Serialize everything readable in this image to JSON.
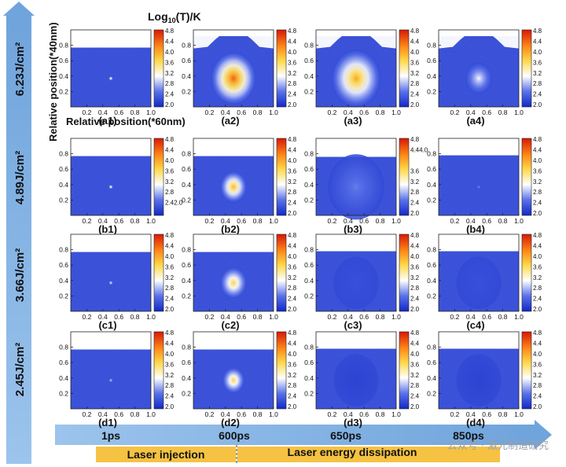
{
  "chart_data": {
    "type": "heatmap",
    "title": "Log10(T)/K",
    "title_parts": {
      "pre": "Log",
      "sub": "10",
      "post": "(T)/K"
    },
    "ylabel": "Relative position(*40nm)",
    "xlabel": "Relative position(*60nm)",
    "x_ticks": [
      "0.2",
      "0.4",
      "0.6",
      "0.8",
      "1.0"
    ],
    "y_ticks": [
      "0.8",
      "0.6",
      "0.4",
      "0.2"
    ],
    "colorbar_ticks": [
      "4.8",
      "4.4",
      "4.0",
      "3.6",
      "3.2",
      "2.8",
      "2.4",
      "2.0"
    ],
    "colorbar_ticks_b1": [
      "4.8",
      "4.4",
      "4.0",
      "3.6",
      "3.2",
      "2.8",
      "2.42.0"
    ],
    "colorbar_ticks_a3": [
      "4.8",
      "4.4",
      "4.0",
      "3.6",
      "3.2",
      "2.8",
      "2.4",
      "2.0"
    ],
    "colorbar_ticks_b3": [
      "4.8",
      "4.44.0",
      "3.6",
      "3.2",
      "2.8",
      "2.4",
      "2.0"
    ],
    "colorbar_ticks_b2": [
      "4.8",
      "4.4",
      "4.0",
      "3.6",
      "3.2",
      "2.8",
      "2.4",
      "2.0"
    ],
    "colorbar_range": [
      2.0,
      4.8
    ],
    "fluences": [
      "6.23J/cm²",
      "4.89J/cm²",
      "3.66J/cm²",
      "2.45J/cm²"
    ],
    "times": [
      "1ps",
      "600ps",
      "650ps",
      "850ps"
    ],
    "phases": [
      "Laser injection",
      "Laser energy dissipation"
    ],
    "panels": [
      {
        "label": "(a1)",
        "row": 0,
        "col": 0,
        "peak_log10T": 3.4,
        "hotspot_spread": 0.012,
        "surface_y": 0.77
      },
      {
        "label": "(a2)",
        "row": 0,
        "col": 1,
        "peak_log10T": 4.4,
        "hotspot_spread": 0.2,
        "surface_y": 0.8
      },
      {
        "label": "(a3)",
        "row": 0,
        "col": 2,
        "peak_log10T": 4.0,
        "hotspot_spread": 0.22,
        "surface_y": 0.8
      },
      {
        "label": "(a4)",
        "row": 0,
        "col": 3,
        "peak_log10T": 3.1,
        "hotspot_spread": 0.12,
        "surface_y": 0.8
      },
      {
        "label": "(b1)",
        "row": 1,
        "col": 0,
        "peak_log10T": 3.4,
        "hotspot_spread": 0.012,
        "surface_y": 0.77
      },
      {
        "label": "(b2)",
        "row": 1,
        "col": 1,
        "peak_log10T": 3.9,
        "hotspot_spread": 0.12,
        "surface_y": 0.77
      },
      {
        "label": "(b3)",
        "row": 1,
        "col": 2,
        "peak_log10T": 2.6,
        "hotspot_spread": 0.25,
        "surface_y": 0.76
      },
      {
        "label": "(b4)",
        "row": 1,
        "col": 3,
        "peak_log10T": 2.7,
        "hotspot_spread": 0.012,
        "surface_y": 0.78
      },
      {
        "label": "(c1)",
        "row": 2,
        "col": 0,
        "peak_log10T": 3.2,
        "hotspot_spread": 0.012,
        "surface_y": 0.77
      },
      {
        "label": "(c2)",
        "row": 2,
        "col": 1,
        "peak_log10T": 3.7,
        "hotspot_spread": 0.12,
        "surface_y": 0.77
      },
      {
        "label": "(c3)",
        "row": 2,
        "col": 2,
        "peak_log10T": 2.3,
        "hotspot_spread": 0.2,
        "surface_y": 0.78
      },
      {
        "label": "(c4)",
        "row": 2,
        "col": 3,
        "peak_log10T": 2.3,
        "hotspot_spread": 0.2,
        "surface_y": 0.78
      },
      {
        "label": "(d1)",
        "row": 3,
        "col": 0,
        "peak_log10T": 3.0,
        "hotspot_spread": 0.012,
        "surface_y": 0.77
      },
      {
        "label": "(d2)",
        "row": 3,
        "col": 1,
        "peak_log10T": 3.7,
        "hotspot_spread": 0.1,
        "surface_y": 0.77
      },
      {
        "label": "(d3)",
        "row": 3,
        "col": 2,
        "peak_log10T": 2.2,
        "hotspot_spread": 0.2,
        "surface_y": 0.78
      },
      {
        "label": "(d4)",
        "row": 3,
        "col": 3,
        "peak_log10T": 2.2,
        "hotspot_spread": 0.2,
        "surface_y": 0.78
      }
    ],
    "watermark": "公众号 · 激光制造研究"
  },
  "colors": {
    "arrow": "#86b6e6",
    "arrow_text": "#1a1a1a",
    "phase_bar": "#f5c242",
    "field_base": "#4a5fd6"
  }
}
